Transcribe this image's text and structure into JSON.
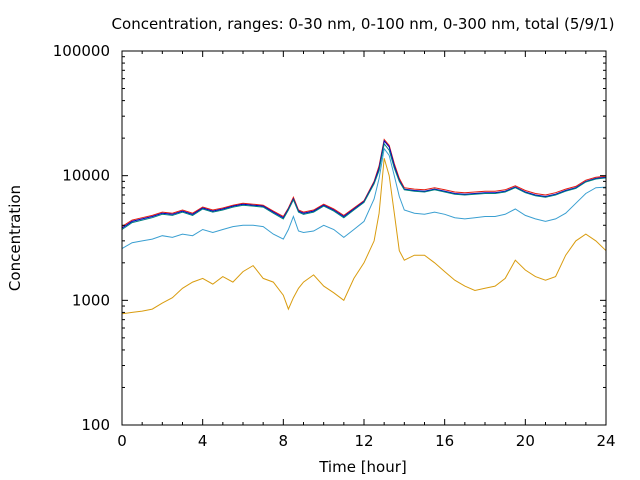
{
  "chart_data": {
    "type": "line",
    "title": "Concentration, ranges: 0-30 nm, 0-100 nm, 0-300 nm, total (5/9/1)",
    "xlabel": "Time [hour]",
    "ylabel": "Concentration",
    "xlim": [
      0,
      24
    ],
    "ylim": [
      100,
      100000
    ],
    "yscale": "log",
    "grid": false,
    "legend": "none",
    "x_ticks": [
      0,
      4,
      8,
      12,
      16,
      20,
      24
    ],
    "x_tick_labels": [
      "0",
      "4",
      "8",
      "12",
      "16",
      "20",
      "24"
    ],
    "y_ticks": [
      100,
      1000,
      10000,
      100000
    ],
    "y_tick_labels": [
      "100",
      "1000",
      "10000",
      "100000"
    ],
    "x": [
      0,
      0.5,
      1,
      1.5,
      2,
      2.5,
      3,
      3.5,
      4,
      4.5,
      5,
      5.5,
      6,
      6.5,
      7,
      7.5,
      8,
      8.25,
      8.5,
      8.75,
      9,
      9.5,
      10,
      10.5,
      11,
      11.5,
      12,
      12.5,
      12.75,
      13,
      13.25,
      13.5,
      13.75,
      14,
      14.5,
      15,
      15.5,
      16,
      16.5,
      17,
      17.5,
      18,
      18.5,
      19,
      19.5,
      20,
      20.5,
      21,
      21.5,
      22,
      22.5,
      23,
      23.5,
      24
    ],
    "series": [
      {
        "color": "#e51e10",
        "values": [
          3900,
          4400,
          4600,
          4800,
          5100,
          5000,
          5300,
          5000,
          5600,
          5300,
          5500,
          5800,
          6000,
          5900,
          5800,
          5200,
          4700,
          5500,
          6700,
          5300,
          5100,
          5300,
          5900,
          5400,
          4800,
          5500,
          6300,
          9000,
          12000,
          19500,
          17500,
          12500,
          9500,
          8000,
          7800,
          7700,
          8000,
          7700,
          7400,
          7300,
          7400,
          7500,
          7500,
          7700,
          8300,
          7600,
          7200,
          7000,
          7300,
          7800,
          8200,
          9200,
          9700,
          9900
        ]
      },
      {
        "color": "#0000c0",
        "values": [
          3800,
          4300,
          4500,
          4700,
          5000,
          4900,
          5200,
          4900,
          5500,
          5200,
          5400,
          5700,
          5900,
          5800,
          5700,
          5100,
          4600,
          5400,
          6500,
          5200,
          5000,
          5200,
          5800,
          5300,
          4700,
          5400,
          6200,
          8800,
          11500,
          19000,
          17000,
          12000,
          9200,
          7800,
          7600,
          7500,
          7800,
          7500,
          7200,
          7100,
          7200,
          7300,
          7300,
          7500,
          8100,
          7400,
          7000,
          6800,
          7100,
          7600,
          8000,
          9000,
          9500,
          9700
        ]
      },
      {
        "color": "#008080",
        "values": [
          3700,
          4200,
          4400,
          4600,
          4900,
          4800,
          5100,
          4800,
          5400,
          5100,
          5300,
          5600,
          5800,
          5700,
          5600,
          5000,
          4500,
          5300,
          6400,
          5100,
          4900,
          5100,
          5700,
          5200,
          4600,
          5300,
          6100,
          8600,
          11000,
          18000,
          16000,
          11500,
          9000,
          7700,
          7500,
          7400,
          7700,
          7400,
          7100,
          7000,
          7100,
          7200,
          7200,
          7400,
          8000,
          7300,
          6900,
          6700,
          7000,
          7500,
          7900,
          8900,
          9400,
          9600
        ]
      },
      {
        "color": "#3a9fd1",
        "values": [
          2600,
          2900,
          3000,
          3100,
          3300,
          3200,
          3400,
          3300,
          3700,
          3500,
          3700,
          3900,
          4000,
          4000,
          3900,
          3400,
          3100,
          3700,
          4700,
          3600,
          3500,
          3600,
          4000,
          3700,
          3200,
          3700,
          4300,
          6500,
          9500,
          16500,
          14500,
          10000,
          6800,
          5300,
          5000,
          4900,
          5100,
          4900,
          4600,
          4500,
          4600,
          4700,
          4700,
          4900,
          5400,
          4800,
          4500,
          4300,
          4500,
          5000,
          6000,
          7200,
          8000,
          8100
        ]
      },
      {
        "color": "#d99c0f",
        "values": [
          780,
          800,
          820,
          850,
          950,
          1050,
          1250,
          1400,
          1500,
          1350,
          1550,
          1400,
          1700,
          1900,
          1500,
          1400,
          1100,
          850,
          1050,
          1250,
          1400,
          1600,
          1300,
          1150,
          1000,
          1500,
          2000,
          3000,
          5000,
          13800,
          10000,
          5000,
          2500,
          2100,
          2300,
          2300,
          2000,
          1700,
          1450,
          1300,
          1200,
          1250,
          1300,
          1500,
          2100,
          1750,
          1550,
          1450,
          1550,
          2300,
          3000,
          3400,
          3000,
          2500
        ]
      }
    ]
  }
}
